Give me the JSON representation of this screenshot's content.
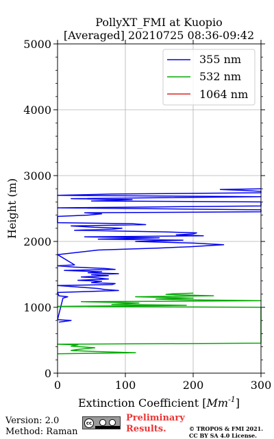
{
  "chart_data": {
    "type": "line",
    "title": "PollyXT_FMI at Kuopio",
    "subtitle": "[Averaged] 20210725 08:36-09:42",
    "xlabel": "Extinction Coefficient [Mm^-1]",
    "xlabel_base": "Extinction Coefficient [",
    "xlabel_unit": "Mm",
    "xlabel_exp": "-1",
    "xlabel_close": "]",
    "ylabel": "Height (m)",
    "xlim": [
      0,
      300
    ],
    "ylim": [
      0,
      5000
    ],
    "xticks": [
      0,
      100,
      200,
      300
    ],
    "yticks": [
      0,
      1000,
      2000,
      3000,
      4000,
      5000
    ],
    "grid": true,
    "legend_position": "top-right",
    "series": [
      {
        "name": "355 nm",
        "color": "#0000ee",
        "points": [
          [
            2,
            775
          ],
          [
            20,
            800
          ],
          [
            0,
            812
          ],
          [
            8,
            1140
          ],
          [
            15,
            1160
          ],
          [
            2,
            1175
          ],
          [
            0,
            1225
          ],
          [
            45,
            1240
          ],
          [
            90,
            1255
          ],
          [
            70,
            1270
          ],
          [
            60,
            1285
          ],
          [
            0,
            1330
          ],
          [
            80,
            1345
          ],
          [
            85,
            1360
          ],
          [
            50,
            1375
          ],
          [
            65,
            1395
          ],
          [
            30,
            1410
          ],
          [
            75,
            1430
          ],
          [
            60,
            1445
          ],
          [
            35,
            1460
          ],
          [
            75,
            1480
          ],
          [
            50,
            1495
          ],
          [
            90,
            1510
          ],
          [
            45,
            1525
          ],
          [
            65,
            1540
          ],
          [
            10,
            1560
          ],
          [
            85,
            1575
          ],
          [
            70,
            1590
          ],
          [
            25,
            1610
          ],
          [
            0,
            1630
          ],
          [
            25,
            1645
          ],
          [
            0,
            1800
          ],
          [
            60,
            1870
          ],
          [
            150,
            1900
          ],
          [
            195,
            1920
          ],
          [
            245,
            1950
          ],
          [
            200,
            1975
          ],
          [
            115,
            2000
          ],
          [
            185,
            2020
          ],
          [
            60,
            2035
          ],
          [
            150,
            2055
          ],
          [
            40,
            2070
          ],
          [
            215,
            2085
          ],
          [
            175,
            2100
          ],
          [
            200,
            2115
          ],
          [
            205,
            2130
          ],
          [
            160,
            2145
          ],
          [
            25,
            2170
          ],
          [
            80,
            2185
          ],
          [
            95,
            2200
          ],
          [
            55,
            2215
          ],
          [
            20,
            2235
          ],
          [
            130,
            2255
          ],
          [
            110,
            2270
          ],
          [
            0,
            2285
          ],
          [
            0,
            2380
          ],
          [
            45,
            2400
          ],
          [
            65,
            2420
          ],
          [
            40,
            2435
          ],
          [
            300,
            2450
          ],
          [
            300,
            2480
          ],
          [
            0,
            2510
          ],
          [
            150,
            2525
          ],
          [
            300,
            2540
          ],
          [
            300,
            2600
          ],
          [
            50,
            2615
          ],
          [
            110,
            2635
          ],
          [
            20,
            2650
          ],
          [
            300,
            2680
          ],
          [
            0,
            2700
          ],
          [
            80,
            2720
          ],
          [
            300,
            2740
          ],
          [
            300,
            2760
          ],
          [
            275,
            2775
          ],
          [
            240,
            2790
          ],
          [
            300,
            2800
          ]
        ]
      },
      {
        "name": "532 nm",
        "color": "#00aa00",
        "points": [
          [
            0,
            295
          ],
          [
            115,
            310
          ],
          [
            50,
            330
          ],
          [
            20,
            345
          ],
          [
            30,
            360
          ],
          [
            55,
            385
          ],
          [
            20,
            410
          ],
          [
            30,
            430
          ],
          [
            0,
            440
          ],
          [
            300,
            455
          ],
          [
            300,
            1000
          ],
          [
            0,
            1015
          ],
          [
            190,
            1030
          ],
          [
            80,
            1045
          ],
          [
            120,
            1065
          ],
          [
            35,
            1085
          ],
          [
            300,
            1100
          ],
          [
            185,
            1115
          ],
          [
            145,
            1125
          ],
          [
            200,
            1140
          ],
          [
            115,
            1160
          ],
          [
            230,
            1175
          ],
          [
            160,
            1195
          ],
          [
            170,
            1205
          ],
          [
            200,
            1215
          ]
        ]
      },
      {
        "name": "1064 nm",
        "color": "#dd2222",
        "points": []
      }
    ]
  },
  "footer": {
    "version": "Version: 2.0",
    "method": "Method: Raman",
    "license_badge": "cc",
    "prelim_line1": "Preliminary",
    "prelim_line2": "Results.",
    "copyright_line1": "© TROPOS & FMI 2021.",
    "copyright_line2": "CC BY SA 4.0 License."
  }
}
